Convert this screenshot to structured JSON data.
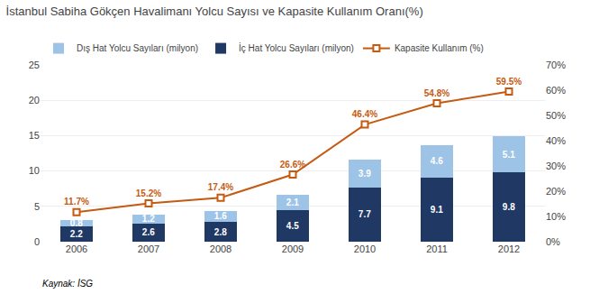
{
  "chart_data": {
    "type": "bar",
    "title": "İstanbul Sabiha Gökçen Havalimanı Yolcu Sayısı ve Kapasite Kullanım Oranı(%)",
    "categories": [
      "2006",
      "2007",
      "2008",
      "2009",
      "2010",
      "2011",
      "2012"
    ],
    "series": [
      {
        "name": "İç Hat Yolcu Sayıları (milyon)",
        "type": "bar",
        "color": "#1f3864",
        "values": [
          2.2,
          2.6,
          2.8,
          4.5,
          7.7,
          9.1,
          9.8
        ]
      },
      {
        "name": "Dış Hat Yolcu Sayıları (milyon)",
        "type": "bar",
        "color": "#9dc3e6",
        "values": [
          0.8,
          1.2,
          1.6,
          2.1,
          3.9,
          4.6,
          5.1
        ]
      },
      {
        "name": "Kapasite Kullanım (%)",
        "type": "line",
        "axis": "y2",
        "color": "#c55a11",
        "marker": "square",
        "values": [
          11.7,
          15.2,
          17.4,
          26.6,
          46.4,
          54.8,
          59.5
        ],
        "value_labels": [
          "11.7%",
          "15.2%",
          "17.4%",
          "26.6%",
          "46.4%",
          "54.8%",
          "59.5%"
        ]
      }
    ],
    "stacked": true,
    "data_labels": true,
    "ylim": [
      0,
      25
    ],
    "yticks": [
      0,
      5,
      10,
      15,
      20,
      25
    ],
    "y2lim": [
      0,
      70
    ],
    "y2ticks": [
      {
        "value": 0,
        "label": "0%"
      },
      {
        "value": 10,
        "label": "10%"
      },
      {
        "value": 20,
        "label": "20%"
      },
      {
        "value": 30,
        "label": "30%"
      },
      {
        "value": 40,
        "label": "40%"
      },
      {
        "value": 50,
        "label": "50%"
      },
      {
        "value": 60,
        "label": "60%"
      },
      {
        "value": 70,
        "label": "70%"
      }
    ],
    "grid": true,
    "annotations": [
      "Kaynak: İSG"
    ]
  }
}
